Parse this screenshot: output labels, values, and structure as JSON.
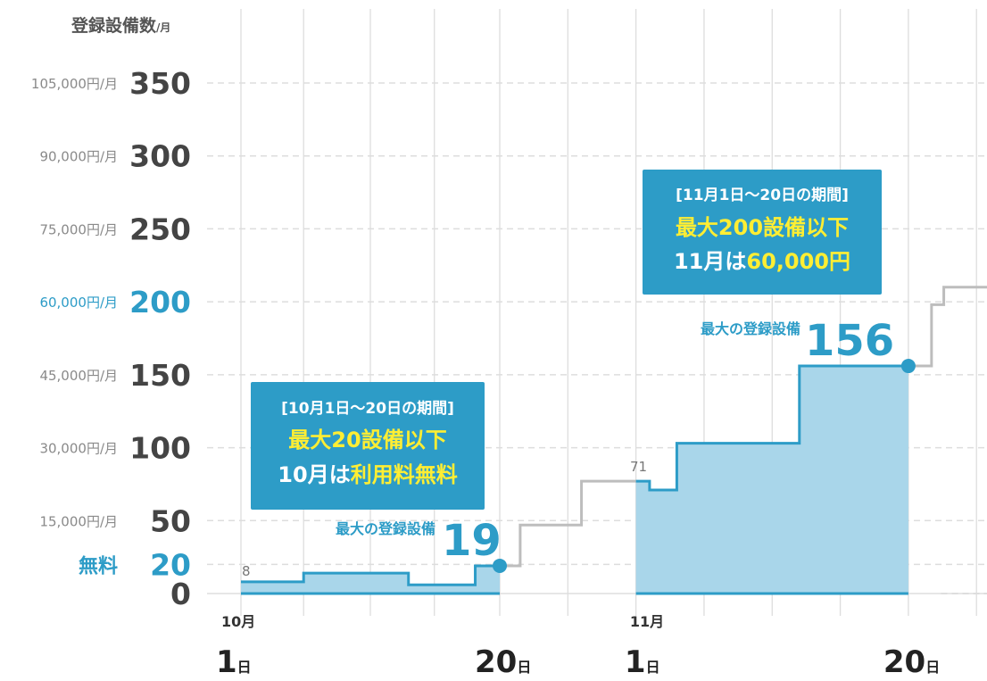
{
  "chart_data": {
    "type": "line",
    "y_axis_title": "登録設備数",
    "y_axis_title_unit": "/月",
    "y_ticks": [
      {
        "value": 0,
        "label": "0",
        "price": "",
        "highlight": false
      },
      {
        "value": 20,
        "label": "20",
        "price": "無料",
        "highlight": true
      },
      {
        "value": 50,
        "label": "50",
        "price": "15,000円/月",
        "highlight": false
      },
      {
        "value": 100,
        "label": "100",
        "price": "30,000円/月",
        "highlight": false
      },
      {
        "value": 150,
        "label": "150",
        "price": "45,000円/月",
        "highlight": false
      },
      {
        "value": 200,
        "label": "200",
        "price": "60,000円/月",
        "highlight": true
      },
      {
        "value": 250,
        "label": "250",
        "price": "75,000円/月",
        "highlight": false
      },
      {
        "value": 300,
        "label": "300",
        "price": "90,000円/月",
        "highlight": false
      },
      {
        "value": 350,
        "label": "350",
        "price": "105,000円/月",
        "highlight": false
      }
    ],
    "ylim": [
      0,
      350
    ],
    "x_range": [
      1,
      44
    ],
    "x_ticks": [
      {
        "x": 1,
        "month": "10月",
        "day": "1",
        "suffix": "日"
      },
      {
        "x": 20,
        "month": "",
        "day": "20",
        "suffix": "日"
      },
      {
        "x": 31,
        "month": "11月",
        "day": "1",
        "suffix": "日"
      },
      {
        "x": 50,
        "month": "",
        "day": "20",
        "suffix": "日"
      }
    ],
    "series": [
      {
        "segment": "10月",
        "highlight": true,
        "points": [
          [
            1,
            8
          ],
          [
            5.6,
            8
          ],
          [
            5.6,
            14
          ],
          [
            13.3,
            14
          ],
          [
            13.3,
            6
          ],
          [
            18.2,
            6
          ],
          [
            18.2,
            19
          ],
          [
            20,
            19
          ]
        ]
      },
      {
        "segment": "transition",
        "highlight": false,
        "points": [
          [
            20,
            19
          ],
          [
            21.5,
            19
          ],
          [
            21.5,
            47
          ],
          [
            26,
            47
          ],
          [
            26,
            77
          ],
          [
            30,
            77
          ]
        ]
      },
      {
        "segment": "11月",
        "highlight": true,
        "points": [
          [
            30,
            77
          ],
          [
            31,
            77
          ],
          [
            31,
            71
          ],
          [
            33,
            71
          ],
          [
            33,
            103
          ],
          [
            42,
            103
          ],
          [
            42,
            156
          ],
          [
            50,
            156
          ]
        ]
      },
      {
        "segment": "after",
        "highlight": false,
        "points": [
          [
            50,
            156
          ],
          [
            51.7,
            156
          ],
          [
            51.7,
            198
          ],
          [
            52.6,
            198
          ],
          [
            52.6,
            210
          ],
          [
            58,
            210
          ]
        ]
      }
    ],
    "grid": true,
    "start_label": "8",
    "mid_label": "71",
    "peaks": [
      {
        "label": "最大の登録設備",
        "value": "19",
        "x": 20,
        "y": 19
      },
      {
        "label": "最大の登録設備",
        "value": "156",
        "x": 50,
        "y": 156
      }
    ],
    "callouts": [
      {
        "line1": "[10月1日〜20日の期間]",
        "line2": "最大20設備以下",
        "line3_prefix": "10月は",
        "line3_highlight": "利用料無料"
      },
      {
        "line1": "[11月1日〜20日の期間]",
        "line2": "最大200設備以下",
        "line3_prefix": "11月は",
        "line3_highlight": "60,000円"
      }
    ],
    "colors": {
      "accent": "#2d9cc7",
      "fill": "#a9d6ea",
      "gray_line": "#bdbdbd",
      "grid": "#dddddd",
      "callout_bg": "#2d9cc7",
      "callout_highlight": "#ffee33"
    }
  }
}
